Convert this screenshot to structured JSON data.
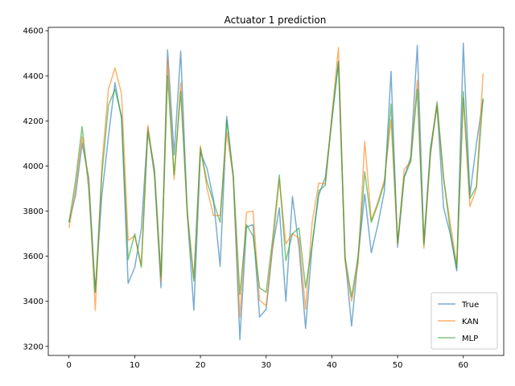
{
  "chart_data": {
    "type": "line",
    "title": "Actuator 1 prediction",
    "xlabel": "",
    "ylabel": "",
    "xlim": [
      -3.15,
      66.15
    ],
    "ylim": [
      3160,
      4615
    ],
    "x_ticks": [
      0,
      10,
      20,
      30,
      40,
      50,
      60
    ],
    "y_ticks": [
      3200,
      3400,
      3600,
      3800,
      4000,
      4200,
      4400,
      4600
    ],
    "grid": false,
    "legend_position": "lower-right",
    "series": [
      {
        "name": "True",
        "color": "#1f77b4",
        "values": [
          3750,
          3870,
          4100,
          3950,
          3440,
          3870,
          4130,
          4370,
          4210,
          3480,
          3550,
          3720,
          4170,
          3960,
          3460,
          4515,
          4050,
          4510,
          3790,
          3360,
          4060,
          3990,
          3850,
          3555,
          4220,
          3950,
          3230,
          3730,
          3740,
          3330,
          3365,
          3640,
          3815,
          3400,
          3865,
          3640,
          3280,
          3650,
          3870,
          3950,
          4200,
          4460,
          3600,
          3290,
          3600,
          3875,
          3615,
          3740,
          3890,
          4420,
          3640,
          3950,
          4040,
          4535,
          3660,
          4080,
          4265,
          3815,
          3700,
          3535,
          4545,
          3870,
          4100,
          4295
        ]
      },
      {
        "name": "KAN",
        "color": "#ff7f0e",
        "values": [
          3725,
          3900,
          4130,
          3940,
          3360,
          4000,
          4340,
          4435,
          4320,
          3670,
          3690,
          3560,
          4180,
          3975,
          3490,
          4475,
          3940,
          4370,
          3780,
          3500,
          4090,
          3900,
          3780,
          3780,
          4150,
          3950,
          3330,
          3795,
          3800,
          3405,
          3380,
          3650,
          3940,
          3655,
          3700,
          3680,
          3365,
          3750,
          3925,
          3920,
          4225,
          4525,
          3580,
          3400,
          3570,
          4110,
          3760,
          3840,
          3940,
          4205,
          3655,
          3985,
          4020,
          4380,
          3635,
          4050,
          4270,
          3940,
          3750,
          3560,
          4300,
          3820,
          3900,
          4410
        ]
      },
      {
        "name": "MLP",
        "color": "#2ca02c",
        "values": [
          3750,
          3935,
          4175,
          3900,
          3440,
          3960,
          4270,
          4340,
          4220,
          3585,
          3700,
          3550,
          4150,
          3990,
          3510,
          4400,
          3960,
          4330,
          3800,
          3490,
          4080,
          3930,
          3840,
          3750,
          4205,
          3955,
          3430,
          3740,
          3690,
          3460,
          3440,
          3680,
          3960,
          3580,
          3700,
          3725,
          3460,
          3650,
          3890,
          3915,
          4215,
          4465,
          3595,
          3420,
          3600,
          3975,
          3750,
          3830,
          3925,
          4275,
          3660,
          3950,
          4020,
          4340,
          3650,
          4060,
          4285,
          3950,
          3715,
          3545,
          4330,
          3855,
          3910,
          4300
        ]
      }
    ]
  }
}
